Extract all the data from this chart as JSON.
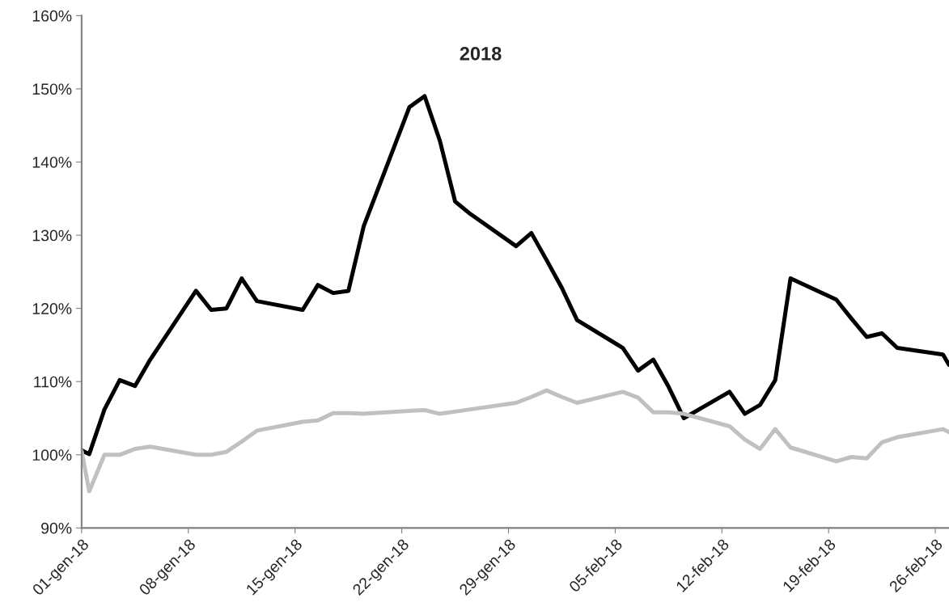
{
  "chart_data": {
    "type": "line",
    "title": "2018",
    "x": [
      "2018-01-01T00:00",
      "2018-01-01T12:00",
      "2018-01-02T12:00",
      "2018-01-03T12:00",
      "2018-01-04T12:00",
      "2018-01-05T12:00",
      "2018-01-08T12:00",
      "2018-01-09T12:00",
      "2018-01-10T12:00",
      "2018-01-11T12:00",
      "2018-01-12T12:00",
      "2018-01-15T12:00",
      "2018-01-16T12:00",
      "2018-01-17T12:00",
      "2018-01-18T12:00",
      "2018-01-19T12:00",
      "2018-01-22T12:00",
      "2018-01-23T12:00",
      "2018-01-24T12:00",
      "2018-01-25T12:00",
      "2018-01-26T12:00",
      "2018-01-29T12:00",
      "2018-01-30T12:00",
      "2018-01-31T12:00",
      "2018-02-01T12:00",
      "2018-02-02T12:00",
      "2018-02-05T12:00",
      "2018-02-06T12:00",
      "2018-02-07T12:00",
      "2018-02-08T12:00",
      "2018-02-09T12:00",
      "2018-02-12T12:00",
      "2018-02-13T12:00",
      "2018-02-14T12:00",
      "2018-02-15T12:00",
      "2018-02-16T12:00",
      "2018-02-19T12:00",
      "2018-02-20T12:00",
      "2018-02-21T12:00",
      "2018-02-22T12:00",
      "2018-02-23T12:00",
      "2018-02-26T12:00",
      "2018-02-26T21:30"
    ],
    "series": [
      {
        "color": "#000000",
        "values": [
          100.6,
          100.1,
          106.2,
          110.2,
          109.4,
          113.0,
          122.4,
          119.8,
          120.0,
          124.1,
          121.0,
          119.8,
          123.2,
          122.1,
          122.4,
          131.2,
          147.5,
          149.0,
          142.9,
          134.6,
          132.9,
          128.5,
          130.3,
          126.6,
          122.8,
          118.4,
          114.6,
          111.5,
          113.0,
          109.3,
          105.0,
          108.6,
          105.6,
          106.8,
          110.2,
          124.1,
          121.2,
          118.6,
          116.1,
          116.6,
          114.6,
          113.7,
          112.3
        ]
      },
      {
        "color": "#c0c0c0",
        "values": [
          100.5,
          95.0,
          100.0,
          100.0,
          100.8,
          101.1,
          100.0,
          100.0,
          100.4,
          101.8,
          103.3,
          104.5,
          104.7,
          105.7,
          105.7,
          105.6,
          106.0,
          106.1,
          105.6,
          105.9,
          106.2,
          107.1,
          107.9,
          108.8,
          107.9,
          107.1,
          108.6,
          107.8,
          105.8,
          105.8,
          105.6,
          103.9,
          102.1,
          100.8,
          103.5,
          101.0,
          99.1,
          99.7,
          99.5,
          101.7,
          102.4,
          103.5,
          103.1
        ]
      }
    ],
    "xlim": [
      "2018-01-01T00:00",
      "2018-02-26T21:30"
    ],
    "xticks": [
      {
        "value": "2018-01-01",
        "label": "01-gen-18"
      },
      {
        "value": "2018-01-08",
        "label": "08-gen-18"
      },
      {
        "value": "2018-01-15",
        "label": "15-gen-18"
      },
      {
        "value": "2018-01-22",
        "label": "22-gen-18"
      },
      {
        "value": "2018-01-29",
        "label": "29-gen-18"
      },
      {
        "value": "2018-02-05",
        "label": "05-feb-18"
      },
      {
        "value": "2018-02-12",
        "label": "12-feb-18"
      },
      {
        "value": "2018-02-19",
        "label": "19-feb-18"
      },
      {
        "value": "2018-02-26",
        "label": "26-feb-18"
      }
    ],
    "ylim": [
      90,
      160
    ],
    "yticks": [
      {
        "value": 90,
        "label": "90%"
      },
      {
        "value": 100,
        "label": "100%"
      },
      {
        "value": 110,
        "label": "110%"
      },
      {
        "value": 120,
        "label": "120%"
      },
      {
        "value": 130,
        "label": "130%"
      },
      {
        "value": 140,
        "label": "140%"
      },
      {
        "value": 150,
        "label": "150%"
      },
      {
        "value": 160,
        "label": "160%"
      }
    ],
    "grid": false,
    "marker": "none",
    "line_style": "solid"
  }
}
